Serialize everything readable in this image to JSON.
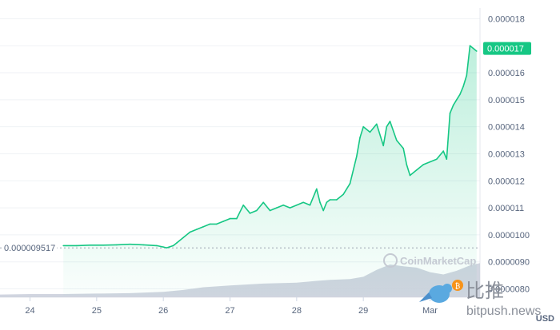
{
  "chart_data": {
    "type": "area",
    "title": "",
    "xlabel": "",
    "ylabel": "",
    "x_tick_labels": [
      "24",
      "25",
      "26",
      "27",
      "28",
      "29",
      "Mar"
    ],
    "y_tick_labels": [
      "0.0000080",
      "0.0000090",
      "0.0000100",
      "0.000011",
      "0.000012",
      "0.000013",
      "0.000014",
      "0.000015",
      "0.000016",
      "0.000017",
      "0.000018"
    ],
    "y_ticks": [
      8e-06,
      9e-06,
      1e-05,
      1.1e-05,
      1.2e-05,
      1.3e-05,
      1.4e-05,
      1.5e-05,
      1.6e-05,
      1.7e-05,
      1.8e-05
    ],
    "ylim": [
      7.75e-06,
      1.81e-05
    ],
    "x_range": [
      23.55,
      30.75
    ],
    "currency": "USD",
    "reference_line": {
      "label": "0.000009517",
      "value": 9.517e-06
    },
    "current_price": {
      "label": "0.000017",
      "value": 1.69e-05
    },
    "series": [
      {
        "color": "#16c784",
        "x": [
          24.5,
          24.7,
          24.9,
          25.1,
          25.3,
          25.5,
          25.7,
          25.9,
          26.0,
          26.05,
          26.1,
          26.15,
          26.2,
          26.3,
          26.4,
          26.5,
          26.6,
          26.7,
          26.8,
          26.9,
          27.0,
          27.1,
          27.2,
          27.3,
          27.4,
          27.5,
          27.6,
          27.7,
          27.8,
          27.9,
          28.0,
          28.1,
          28.2,
          28.3,
          28.35,
          28.4,
          28.45,
          28.5,
          28.6,
          28.7,
          28.8,
          28.9,
          28.95,
          29.0,
          29.1,
          29.2,
          29.3,
          29.35,
          29.4,
          29.5,
          29.6,
          29.65,
          29.7,
          29.8,
          29.9,
          30.0,
          30.1,
          30.2,
          30.25,
          30.3,
          30.35,
          30.4,
          30.45,
          30.5,
          30.55,
          30.6,
          30.65,
          30.7
        ],
        "y": [
          9.6e-06,
          9.6e-06,
          9.62e-06,
          9.62e-06,
          9.63e-06,
          9.65e-06,
          9.63e-06,
          9.6e-06,
          9.55e-06,
          9.52e-06,
          9.56e-06,
          9.6e-06,
          9.7e-06,
          9.9e-06,
          1.01e-05,
          1.02e-05,
          1.03e-05,
          1.04e-05,
          1.04e-05,
          1.05e-05,
          1.06e-05,
          1.06e-05,
          1.11e-05,
          1.08e-05,
          1.09e-05,
          1.12e-05,
          1.09e-05,
          1.1e-05,
          1.11e-05,
          1.1e-05,
          1.11e-05,
          1.12e-05,
          1.11e-05,
          1.17e-05,
          1.12e-05,
          1.09e-05,
          1.12e-05,
          1.13e-05,
          1.13e-05,
          1.15e-05,
          1.19e-05,
          1.29e-05,
          1.36e-05,
          1.4e-05,
          1.38e-05,
          1.41e-05,
          1.33e-05,
          1.4e-05,
          1.42e-05,
          1.35e-05,
          1.32e-05,
          1.26e-05,
          1.22e-05,
          1.24e-05,
          1.26e-05,
          1.27e-05,
          1.28e-05,
          1.31e-05,
          1.28e-05,
          1.45e-05,
          1.48e-05,
          1.5e-05,
          1.52e-05,
          1.55e-05,
          1.59e-05,
          1.7e-05,
          1.69e-05,
          1.68e-05
        ]
      }
    ],
    "volume": {
      "color": "#c9ceda",
      "x": [
        23.55,
        24.0,
        24.5,
        25.0,
        25.5,
        26.0,
        26.3,
        26.6,
        27.0,
        27.5,
        28.0,
        28.3,
        28.5,
        28.8,
        29.0,
        29.2,
        29.4,
        29.6,
        29.8,
        30.0,
        30.2,
        30.4,
        30.6,
        30.75
      ],
      "v": [
        0.06,
        0.07,
        0.07,
        0.08,
        0.09,
        0.12,
        0.16,
        0.22,
        0.26,
        0.3,
        0.32,
        0.36,
        0.38,
        0.4,
        0.45,
        0.6,
        0.72,
        0.68,
        0.65,
        0.55,
        0.5,
        0.58,
        0.7,
        0.75
      ]
    }
  },
  "watermarks": {
    "cmc": "CoinMarketCap",
    "bitpush_cn": "比推",
    "bitpush_en": "bitpush.news"
  },
  "colors": {
    "up": "#16c784",
    "down": "#ea3943",
    "axis_text": "#58667e",
    "grid": "#eff2f5"
  }
}
